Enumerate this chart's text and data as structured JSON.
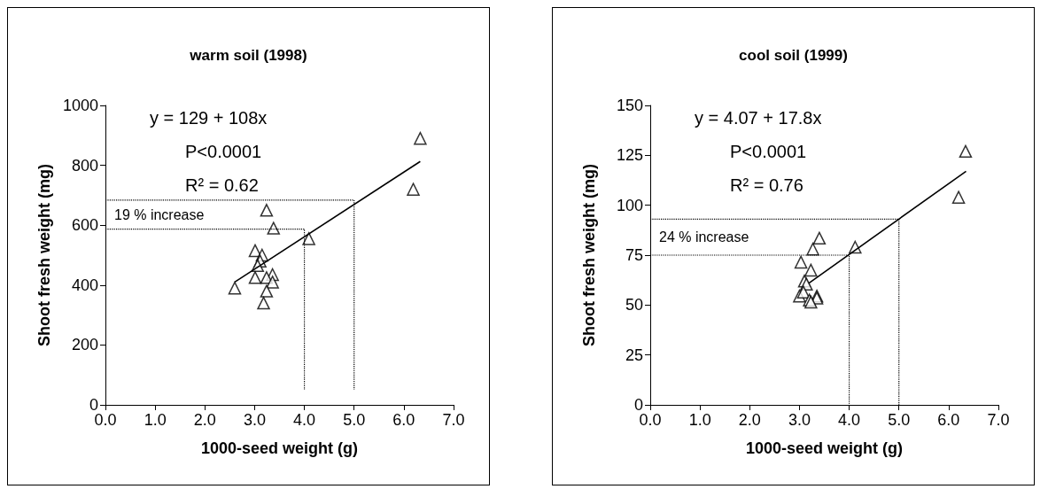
{
  "chart_data": [
    {
      "type": "scatter",
      "title": "warm soil (1998)",
      "xlabel": "1000-seed weight (g)",
      "ylabel": "Shoot fresh weight (mg)",
      "xlim": [
        0,
        7
      ],
      "ylim": [
        0,
        1000
      ],
      "xticks": [
        {
          "value": 0,
          "label": "0.0"
        },
        {
          "value": 1,
          "label": "1.0"
        },
        {
          "value": 2,
          "label": "2.0"
        },
        {
          "value": 3,
          "label": "3.0"
        },
        {
          "value": 4,
          "label": "4.0"
        },
        {
          "value": 5,
          "label": "5.0"
        },
        {
          "value": 6,
          "label": "6.0"
        },
        {
          "value": 7,
          "label": "7.0"
        }
      ],
      "yticks": [
        0,
        200,
        400,
        600,
        800,
        1000
      ],
      "grid": false,
      "marker": "triangle",
      "annotations": [
        "y = 129 + 108x",
        "P<0.0001",
        "R² = 0.62",
        "19 % increase"
      ],
      "series": [
        {
          "color": "#000000",
          "x": [
            6.33,
            6.19,
            3.24,
            3.38,
            4.09,
            3.01,
            3.15,
            3.11,
            3.06,
            3.01,
            3.36,
            3.24,
            3.36,
            3.24,
            3.18,
            2.6
          ],
          "values": [
            890,
            720,
            650,
            590,
            555,
            515,
            500,
            480,
            465,
            425,
            435,
            425,
            410,
            380,
            340,
            390
          ]
        },
        {
          "type": "line",
          "color": "#000000",
          "marker": "none",
          "line_style": "solid",
          "x": [
            2.6,
            6.33
          ],
          "values": [
            410,
            813
          ]
        },
        {
          "type": "line",
          "color": "#000000",
          "marker": "none",
          "line_style": "dotted",
          "x": [
            0,
            4,
            4
          ],
          "values": [
            587,
            587,
            50
          ]
        },
        {
          "type": "line",
          "color": "#000000",
          "marker": "none",
          "line_style": "dotted",
          "x": [
            0,
            5,
            5
          ],
          "values": [
            684,
            684,
            50
          ]
        }
      ]
    },
    {
      "type": "scatter",
      "title": "cool soil (1999)",
      "xlabel": "1000-seed weight (g)",
      "ylabel": "Shoot fresh weight (mg)",
      "xlim": [
        0,
        7
      ],
      "ylim": [
        0,
        150
      ],
      "xticks": [
        {
          "value": 0,
          "label": "0.0"
        },
        {
          "value": 1,
          "label": "1.0"
        },
        {
          "value": 2,
          "label": "2.0"
        },
        {
          "value": 3,
          "label": "3.0"
        },
        {
          "value": 4,
          "label": "4.0"
        },
        {
          "value": 5,
          "label": "5.0"
        },
        {
          "value": 6,
          "label": "6.0"
        },
        {
          "value": 7,
          "label": "7.0"
        }
      ],
      "yticks": [
        0,
        25,
        50,
        75,
        100,
        125,
        150
      ],
      "grid": false,
      "marker": "triangle",
      "annotations": [
        "y = 4.07 + 17.8x",
        "P<0.0001",
        "R² = 0.76",
        "24 % increase"
      ],
      "series": [
        {
          "color": "#000000",
          "x": [
            6.34,
            6.2,
            3.4,
            4.12,
            3.27,
            3.03,
            3.23,
            3.1,
            3.14,
            3.0,
            3.08,
            3.35,
            3.35,
            3.2,
            3.23
          ],
          "values": [
            127,
            104,
            83.5,
            79,
            78,
            71.5,
            67.5,
            62,
            60.5,
            54.5,
            56.5,
            54.5,
            53.5,
            52.5,
            51.5
          ]
        },
        {
          "type": "line",
          "color": "#000000",
          "marker": "none",
          "line_style": "solid",
          "x": [
            3.19,
            6.35
          ],
          "values": [
            61,
            117
          ]
        },
        {
          "type": "line",
          "color": "#000000",
          "marker": "none",
          "line_style": "dotted",
          "x": [
            0,
            4,
            4
          ],
          "values": [
            75,
            75,
            0
          ]
        },
        {
          "type": "line",
          "color": "#000000",
          "marker": "none",
          "line_style": "dotted",
          "x": [
            0,
            5,
            5
          ],
          "values": [
            93,
            93,
            0
          ]
        }
      ]
    }
  ]
}
